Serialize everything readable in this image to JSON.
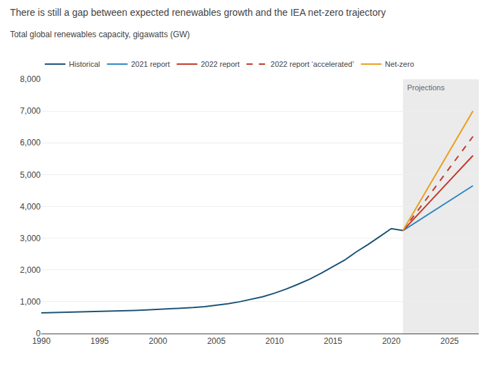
{
  "chart_data": {
    "type": "line",
    "title": "There is still a gap between expected renewables growth and the IEA net-zero trajectory",
    "subtitle": "Total global renewables capacity, gigawatts (GW)",
    "xlim": [
      1990,
      2027.5
    ],
    "ylim": [
      0,
      8000
    ],
    "xticks": [
      1990,
      1995,
      2000,
      2005,
      2010,
      2015,
      2020,
      2025
    ],
    "yticks": [
      0,
      {
        "value": 1000,
        "label": "1,000"
      },
      {
        "value": 2000,
        "label": "2,000"
      },
      {
        "value": 3000,
        "label": "3,000"
      },
      {
        "value": 4000,
        "label": "4,000"
      },
      {
        "value": 5000,
        "label": "5,000"
      },
      {
        "value": 6000,
        "label": "6,000"
      },
      {
        "value": 7000,
        "label": "7,000"
      },
      {
        "value": 8000,
        "label": "8,000"
      }
    ],
    "grid": true,
    "legend": "upper left",
    "annotations": [
      {
        "text": "Projections",
        "x": 2021,
        "color": "#ebebeb"
      }
    ],
    "series": [
      {
        "name": "Historical",
        "color": "#1a5276",
        "line_style": "solid",
        "x": [
          1990,
          1991,
          1992,
          1993,
          1994,
          1995,
          1996,
          1997,
          1998,
          1999,
          2000,
          2001,
          2002,
          2003,
          2004,
          2005,
          2006,
          2007,
          2008,
          2009,
          2010,
          2011,
          2012,
          2013,
          2014,
          2015,
          2016,
          2017,
          2018,
          2019,
          2020,
          2021
        ],
        "values": [
          650,
          658,
          665,
          672,
          680,
          690,
          700,
          712,
          725,
          740,
          758,
          775,
          795,
          818,
          848,
          890,
          940,
          1000,
          1075,
          1160,
          1270,
          1400,
          1550,
          1710,
          1900,
          2100,
          2310,
          2570,
          2800,
          3050,
          3300,
          3240
        ]
      },
      {
        "name": "2021 report",
        "color": "#2e86c1",
        "line_style": "solid",
        "x": [
          2021,
          2027
        ],
        "values": [
          3240,
          4650
        ]
      },
      {
        "name": "2022 report",
        "color": "#c0392b",
        "line_style": "solid",
        "x": [
          2021,
          2027
        ],
        "values": [
          3240,
          5600
        ]
      },
      {
        "name": "2022 report ‘accelerated’",
        "color": "#c0392b",
        "line_style": "dashed",
        "x": [
          2021,
          2027
        ],
        "values": [
          3240,
          6200
        ]
      },
      {
        "name": "Net-zero",
        "color": "#e8a020",
        "line_style": "solid",
        "x": [
          2021,
          2027
        ],
        "values": [
          3240,
          7000
        ]
      }
    ]
  }
}
